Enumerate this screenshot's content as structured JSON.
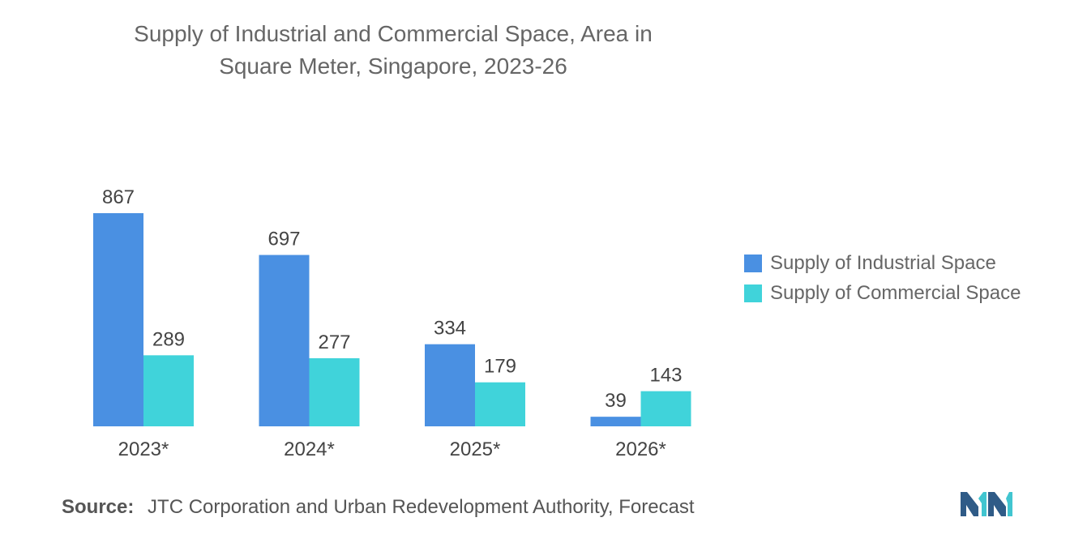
{
  "chart_data": {
    "type": "bar",
    "title": "Supply of Industrial and Commercial Space, Area in Square Meter, Singapore, 2023-26",
    "title_lines": [
      "Supply of Industrial and Commercial Space, Area in",
      "Square Meter, Singapore, 2023-26"
    ],
    "categories": [
      "2023*",
      "2024*",
      "2025*",
      "2026*"
    ],
    "series": [
      {
        "name": "Supply of Industrial Space",
        "values": [
          867,
          697,
          334,
          39
        ],
        "color": "#4a90e2"
      },
      {
        "name": "Supply of Commercial Space",
        "values": [
          289,
          277,
          179,
          143
        ],
        "color": "#40d3da"
      }
    ],
    "xlabel": "",
    "ylabel": "",
    "ylim": [
      0,
      867
    ],
    "grid": false,
    "legend_position": "right",
    "data_labels": true
  },
  "source": {
    "label": "Source:",
    "text": "JTC Corporation and Urban Redevelopment Authority, Forecast"
  },
  "logo": {
    "icon": "mordor-intelligence-logo-icon",
    "colors": [
      "#2f5b87",
      "#41c5d0"
    ]
  }
}
